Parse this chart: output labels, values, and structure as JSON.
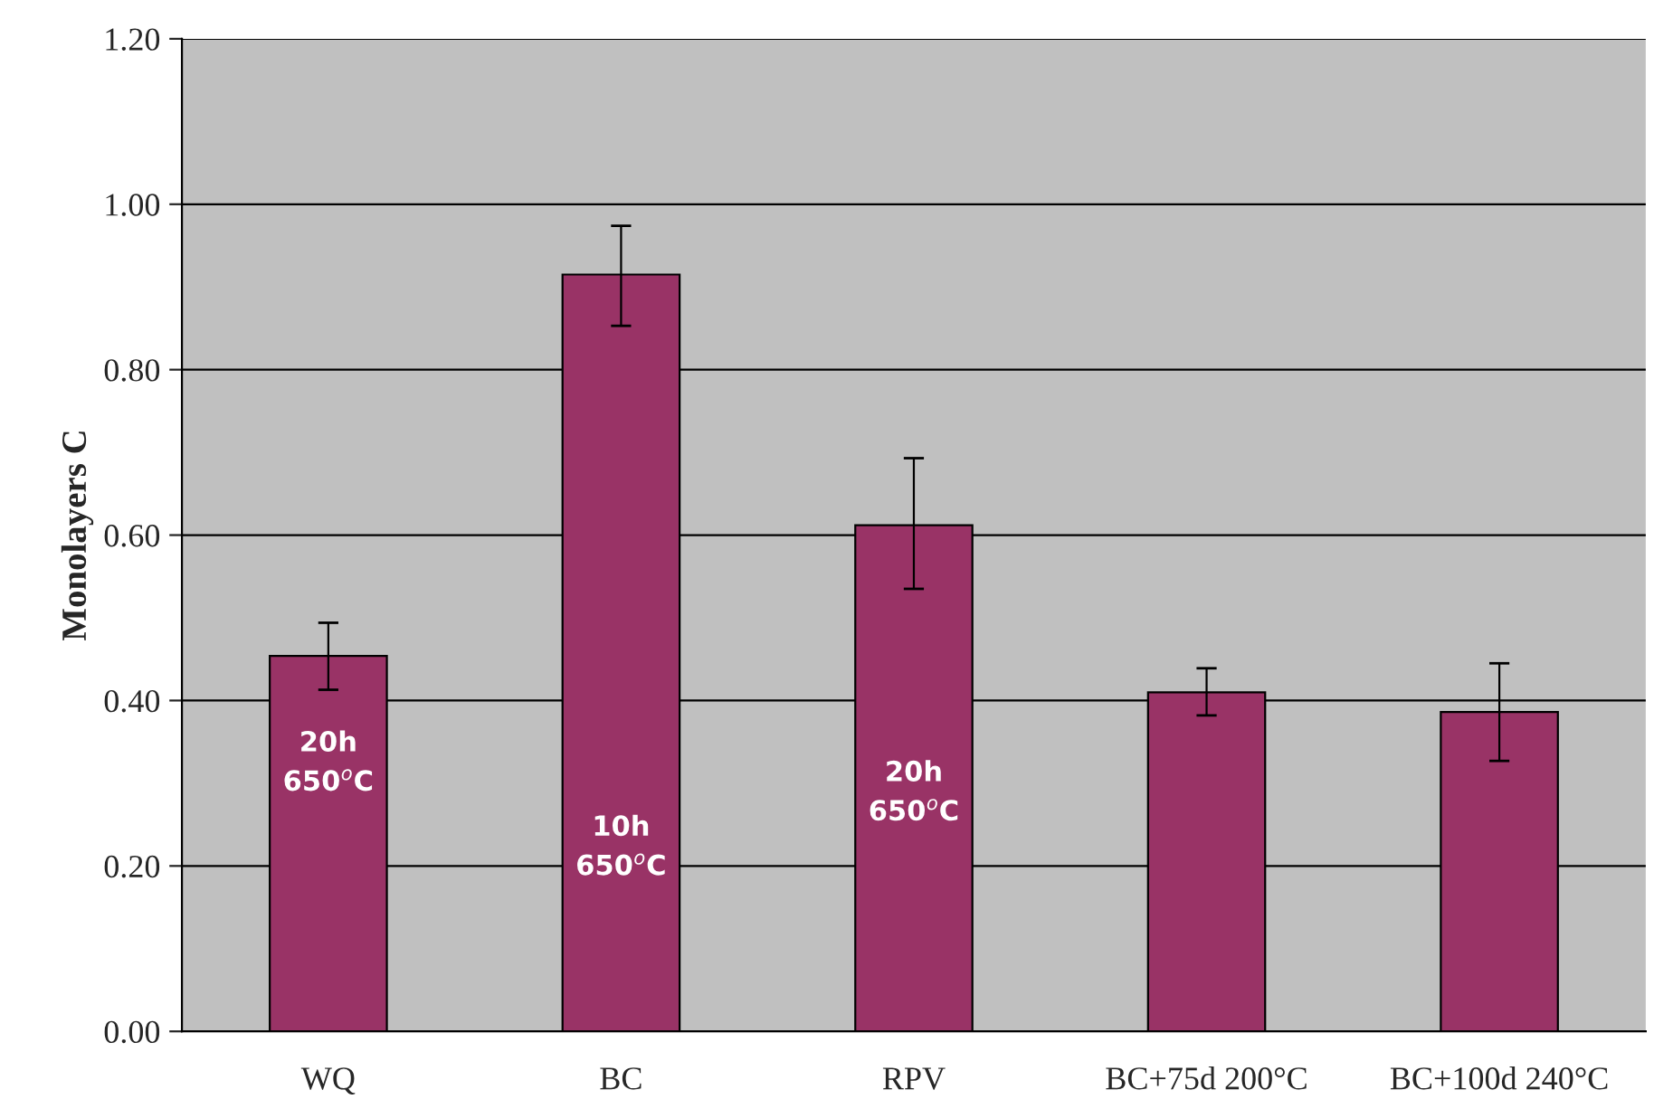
{
  "chart_data": {
    "type": "bar",
    "ylabel": "Monolayers C",
    "categories": [
      "WQ",
      "BC",
      "RPV",
      "BC+75d 200°C",
      "BC+100d 240°C"
    ],
    "values": [
      0.454,
      0.915,
      0.612,
      0.41,
      0.386
    ],
    "errors": [
      [
        0.413,
        0.494
      ],
      [
        0.853,
        0.974
      ],
      [
        0.535,
        0.693
      ],
      [
        0.382,
        0.439
      ],
      [
        0.327,
        0.445
      ]
    ],
    "color": "#993366",
    "ylim": [
      0,
      1.2
    ],
    "yticks": [
      {
        "value": 0,
        "label": "0.00"
      },
      {
        "value": 0.2,
        "label": "0.20"
      },
      {
        "value": 0.4,
        "label": "0.40"
      },
      {
        "value": 0.6,
        "label": "0.60"
      },
      {
        "value": 0.8,
        "label": "0.80"
      },
      {
        "value": 1.0,
        "label": "1.00"
      },
      {
        "value": 1.2,
        "label": "1.20"
      }
    ],
    "grid": "y",
    "annotations": [
      "20h\n650$^{o}$C",
      "10h\n650$^{o}$C",
      "20h\n650$^{o}$C"
    ]
  }
}
